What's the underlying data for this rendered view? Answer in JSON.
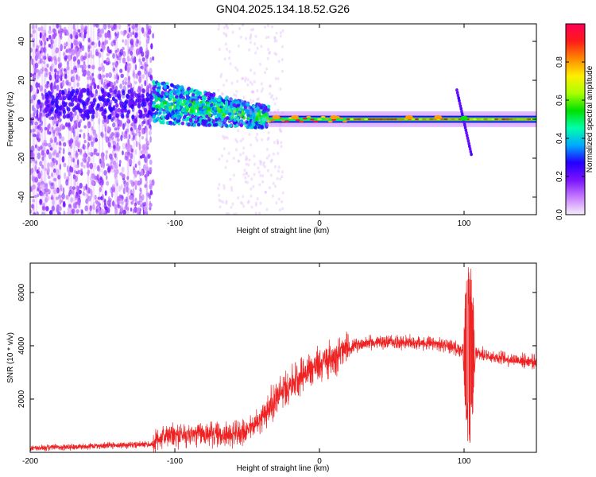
{
  "title": "GN04.2025.134.18.52.G26",
  "chart_data": [
    {
      "type": "heatmap",
      "xlabel": "Height of straight line (km)",
      "ylabel": "Frequency (Hz)",
      "xlim": [
        -200,
        150
      ],
      "ylim": [
        -49,
        49
      ],
      "x_ticks": [
        "-200",
        "-100",
        "0",
        "100"
      ],
      "y_ticks": [
        "40",
        "20",
        "0",
        "-20",
        "-40"
      ],
      "colorbar": {
        "label": "Normalized spectral amplitude",
        "range": [
          0,
          1
        ],
        "ticks": [
          "0.0",
          "0.2",
          "0.4",
          "0.6",
          "0.8"
        ],
        "colors": [
          "#f7eefa",
          "#c77dff",
          "#7b12ff",
          "#2200ff",
          "#00aaff",
          "#00ffaa",
          "#00e000",
          "#aaff00",
          "#ffee00",
          "#ff8800",
          "#ff1a1a",
          "#ff0055"
        ]
      },
      "features": {
        "noise_region_x": [
          -200,
          -115
        ],
        "transition_x": [
          -115,
          -35
        ],
        "narrowband_line_x": [
          -35,
          150
        ],
        "narrowband_frequency_hz": 0,
        "cross_feature": {
          "x": [
            95,
            105
          ],
          "y": [
            15,
            -18
          ]
        }
      }
    },
    {
      "type": "line",
      "xlabel": "Height of straight line (km)",
      "ylabel": "SNR (10 * v/v)",
      "xlim": [
        -200,
        150
      ],
      "ylim": [
        0,
        7100
      ],
      "x_ticks": [
        "-200",
        "-100",
        "0",
        "100"
      ],
      "y_ticks": [
        "6000",
        "4000",
        "2000"
      ],
      "color": "#ee2222",
      "envelope": [
        {
          "x": -200,
          "y": 150
        },
        {
          "x": -150,
          "y": 250
        },
        {
          "x": -115,
          "y": 300
        },
        {
          "x": -110,
          "y": 600
        },
        {
          "x": -80,
          "y": 700
        },
        {
          "x": -60,
          "y": 650
        },
        {
          "x": -50,
          "y": 800
        },
        {
          "x": -40,
          "y": 1300
        },
        {
          "x": -30,
          "y": 2000
        },
        {
          "x": -20,
          "y": 2600
        },
        {
          "x": -10,
          "y": 3000
        },
        {
          "x": 0,
          "y": 3300
        },
        {
          "x": 10,
          "y": 3600
        },
        {
          "x": 20,
          "y": 3900
        },
        {
          "x": 30,
          "y": 4100
        },
        {
          "x": 50,
          "y": 4150
        },
        {
          "x": 70,
          "y": 4100
        },
        {
          "x": 90,
          "y": 4000
        },
        {
          "x": 95,
          "y": 3900
        },
        {
          "x": 100,
          "y": 3800
        },
        {
          "x": 110,
          "y": 3700
        },
        {
          "x": 130,
          "y": 3500
        },
        {
          "x": 150,
          "y": 3400
        }
      ],
      "spike": {
        "x": [
          99,
          108
        ],
        "max": 7000,
        "min": 0
      }
    }
  ]
}
